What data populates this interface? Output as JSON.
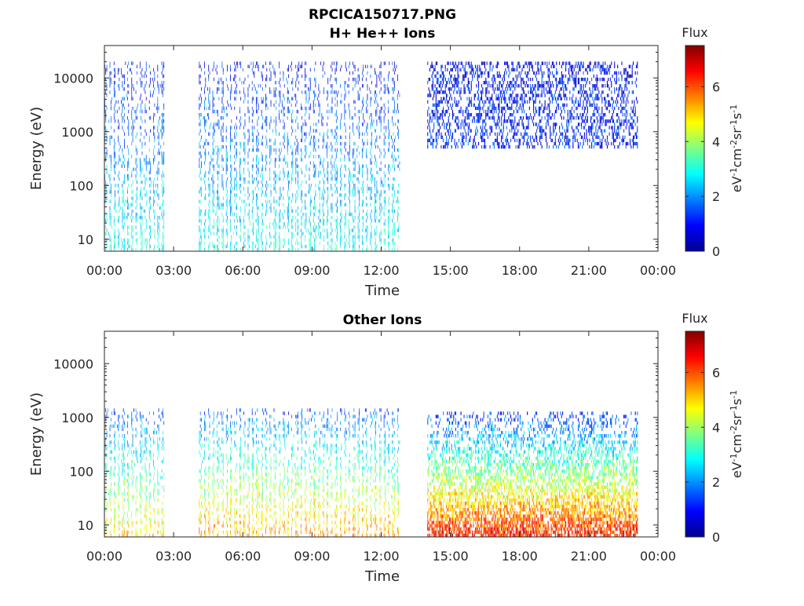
{
  "figure_title": "RPCICA150717.PNG",
  "chart_data": [
    {
      "type": "heatmap",
      "title": "H+ He++ Ions",
      "xlabel": "Time",
      "ylabel": "Energy (eV)",
      "x_ticks": [
        "00:00",
        "03:00",
        "06:00",
        "09:00",
        "12:00",
        "15:00",
        "18:00",
        "21:00",
        "00:00"
      ],
      "x_range_hours": [
        0,
        24
      ],
      "y_scale": "log",
      "y_ticks": [
        10,
        100,
        1000,
        10000
      ],
      "y_tick_labels": [
        "10",
        "100",
        "1000",
        "10000"
      ],
      "y_range": [
        6,
        40000
      ],
      "data_gaps_hours": [
        [
          2.6,
          4.1
        ],
        [
          12.8,
          14.0
        ],
        [
          23.1,
          24
        ]
      ],
      "regions": [
        {
          "hours": [
            0.0,
            2.6
          ],
          "pattern": "vertical-bursts",
          "energy_range": [
            6,
            20000
          ],
          "low_energy_flux": 3.0,
          "high_energy_flux": 1.0
        },
        {
          "hours": [
            4.1,
            12.8
          ],
          "pattern": "vertical-bursts",
          "energy_range": [
            6,
            20000
          ],
          "low_energy_flux": 3.0,
          "high_energy_flux": 1.0
        },
        {
          "hours": [
            14.0,
            23.1
          ],
          "pattern": "diffuse",
          "energy_range": [
            500,
            20000
          ],
          "low_energy_flux": 1.2,
          "high_energy_flux": 0.9
        }
      ],
      "colorbar": {
        "label": "Flux",
        "units": "eV-1cm-2sr-1s-1",
        "range": [
          0,
          7.5
        ],
        "ticks": [
          "0",
          "2",
          "4",
          "6"
        ],
        "colormap": "jet"
      }
    },
    {
      "type": "heatmap",
      "title": "Other Ions",
      "xlabel": "Time",
      "ylabel": "Energy (eV)",
      "x_ticks": [
        "00:00",
        "03:00",
        "06:00",
        "09:00",
        "12:00",
        "15:00",
        "18:00",
        "21:00",
        "00:00"
      ],
      "x_range_hours": [
        0,
        24
      ],
      "y_scale": "log",
      "y_ticks": [
        10,
        100,
        1000,
        10000
      ],
      "y_tick_labels": [
        "10",
        "100",
        "1000",
        "10000"
      ],
      "y_range": [
        6,
        40000
      ],
      "data_gaps_hours": [
        [
          2.6,
          4.1
        ],
        [
          12.8,
          14.0
        ],
        [
          23.1,
          24
        ]
      ],
      "regions": [
        {
          "hours": [
            0.0,
            2.6
          ],
          "pattern": "vertical-bursts",
          "energy_range": [
            6,
            1500
          ],
          "low_energy_flux": 5.0,
          "high_energy_flux": 1.5
        },
        {
          "hours": [
            4.1,
            12.8
          ],
          "pattern": "vertical-bursts",
          "energy_range": [
            6,
            1500
          ],
          "low_energy_flux": 5.5,
          "high_energy_flux": 1.5
        },
        {
          "hours": [
            14.0,
            23.1
          ],
          "pattern": "dense",
          "energy_range": [
            6,
            1300
          ],
          "low_energy_flux": 6.5,
          "high_energy_flux": 1.2
        }
      ],
      "colorbar": {
        "label": "Flux",
        "units": "eV-1cm-2sr-1s-1",
        "range": [
          0,
          7.5
        ],
        "ticks": [
          "0",
          "2",
          "4",
          "6"
        ],
        "colormap": "jet"
      }
    }
  ]
}
